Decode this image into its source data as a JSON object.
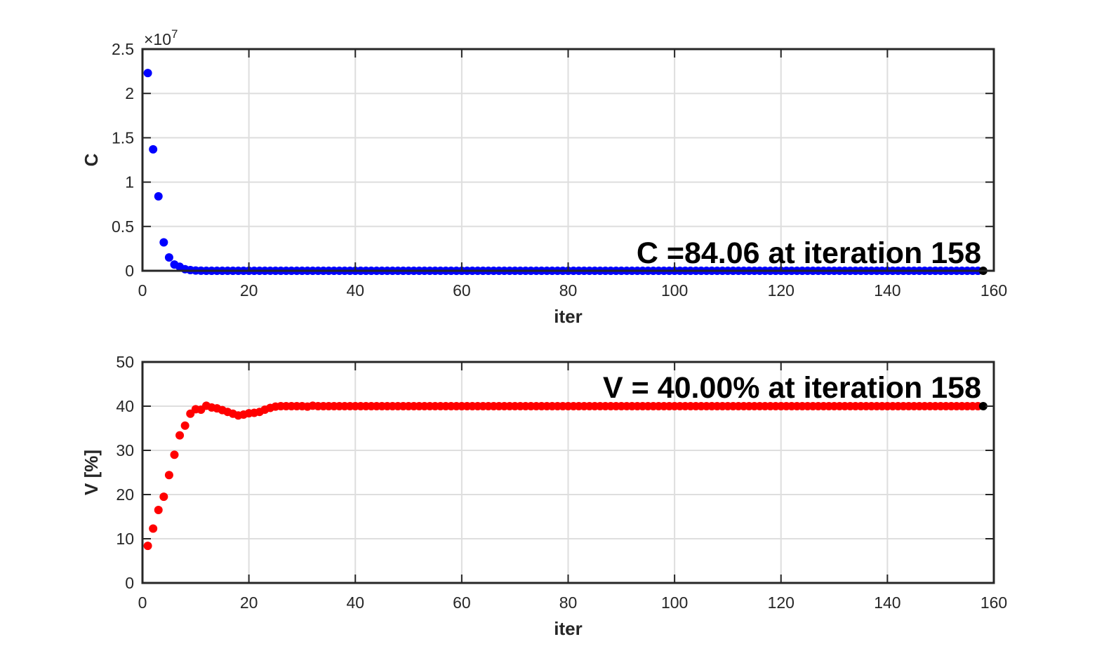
{
  "chart_data": [
    {
      "type": "scatter",
      "xlabel": "iter",
      "ylabel": "C",
      "xlim": [
        0,
        160
      ],
      "ylim": [
        0,
        25000000
      ],
      "xticks": [
        "0",
        "20",
        "40",
        "60",
        "80",
        "100",
        "120",
        "140",
        "160"
      ],
      "yticks": [
        "0",
        "0.5",
        "1",
        "1.5",
        "2",
        "2.5"
      ],
      "ytick_values": [
        0,
        5000000,
        10000000,
        15000000,
        20000000,
        25000000
      ],
      "y_exponent_label": "×10",
      "y_exponent": "7",
      "grid": true,
      "marker_color": "#0000ff",
      "highlight_color": "#000000",
      "annotation": "C =84.06 at iteration 158",
      "series": [
        {
          "points": [
            [
              1,
              22300000
            ],
            [
              2,
              13700000
            ],
            [
              3,
              8400000
            ],
            [
              4,
              3200000
            ],
            [
              5,
              1500000
            ],
            [
              6,
              700000
            ],
            [
              7,
              450000
            ],
            [
              8,
              180000
            ],
            [
              9,
              80000
            ],
            [
              10,
              30000
            ],
            [
              11,
              10000
            ]
          ],
          "tail": {
            "from": 12,
            "to": 158,
            "value": 84.06
          }
        }
      ],
      "highlight_point": [
        158,
        84.06
      ]
    },
    {
      "type": "scatter",
      "xlabel": "iter",
      "ylabel": "V [%]",
      "xlim": [
        0,
        160
      ],
      "ylim": [
        0,
        50
      ],
      "xticks": [
        "0",
        "20",
        "40",
        "60",
        "80",
        "100",
        "120",
        "140",
        "160"
      ],
      "yticks": [
        "0",
        "10",
        "20",
        "30",
        "40",
        "50"
      ],
      "ytick_values": [
        0,
        10,
        20,
        30,
        40,
        50
      ],
      "grid": true,
      "marker_color": "#ff0000",
      "highlight_color": "#000000",
      "annotation": "V = 40.00% at iteration 158",
      "series": [
        {
          "points": [
            [
              1,
              8.4
            ],
            [
              2,
              12.3
            ],
            [
              3,
              16.5
            ],
            [
              4,
              19.5
            ],
            [
              5,
              24.4
            ],
            [
              6,
              29.0
            ],
            [
              7,
              33.4
            ],
            [
              8,
              35.6
            ],
            [
              9,
              38.3
            ],
            [
              10,
              39.3
            ],
            [
              11,
              39.2
            ],
            [
              12,
              40.1
            ],
            [
              13,
              39.7
            ],
            [
              14,
              39.5
            ],
            [
              15,
              39.1
            ],
            [
              16,
              38.7
            ],
            [
              17,
              38.3
            ],
            [
              18,
              37.9
            ],
            [
              19,
              38.1
            ],
            [
              20,
              38.4
            ],
            [
              21,
              38.5
            ],
            [
              22,
              38.7
            ],
            [
              23,
              39.2
            ],
            [
              24,
              39.6
            ],
            [
              25,
              39.9
            ],
            [
              26,
              40.0
            ],
            [
              27,
              40.0
            ],
            [
              28,
              40.0
            ],
            [
              29,
              40.0
            ],
            [
              30,
              40.0
            ],
            [
              31,
              39.9
            ],
            [
              32,
              40.1
            ]
          ],
          "tail": {
            "from": 33,
            "to": 158,
            "value": 40.0
          }
        }
      ],
      "highlight_point": [
        158,
        40.0
      ]
    }
  ]
}
